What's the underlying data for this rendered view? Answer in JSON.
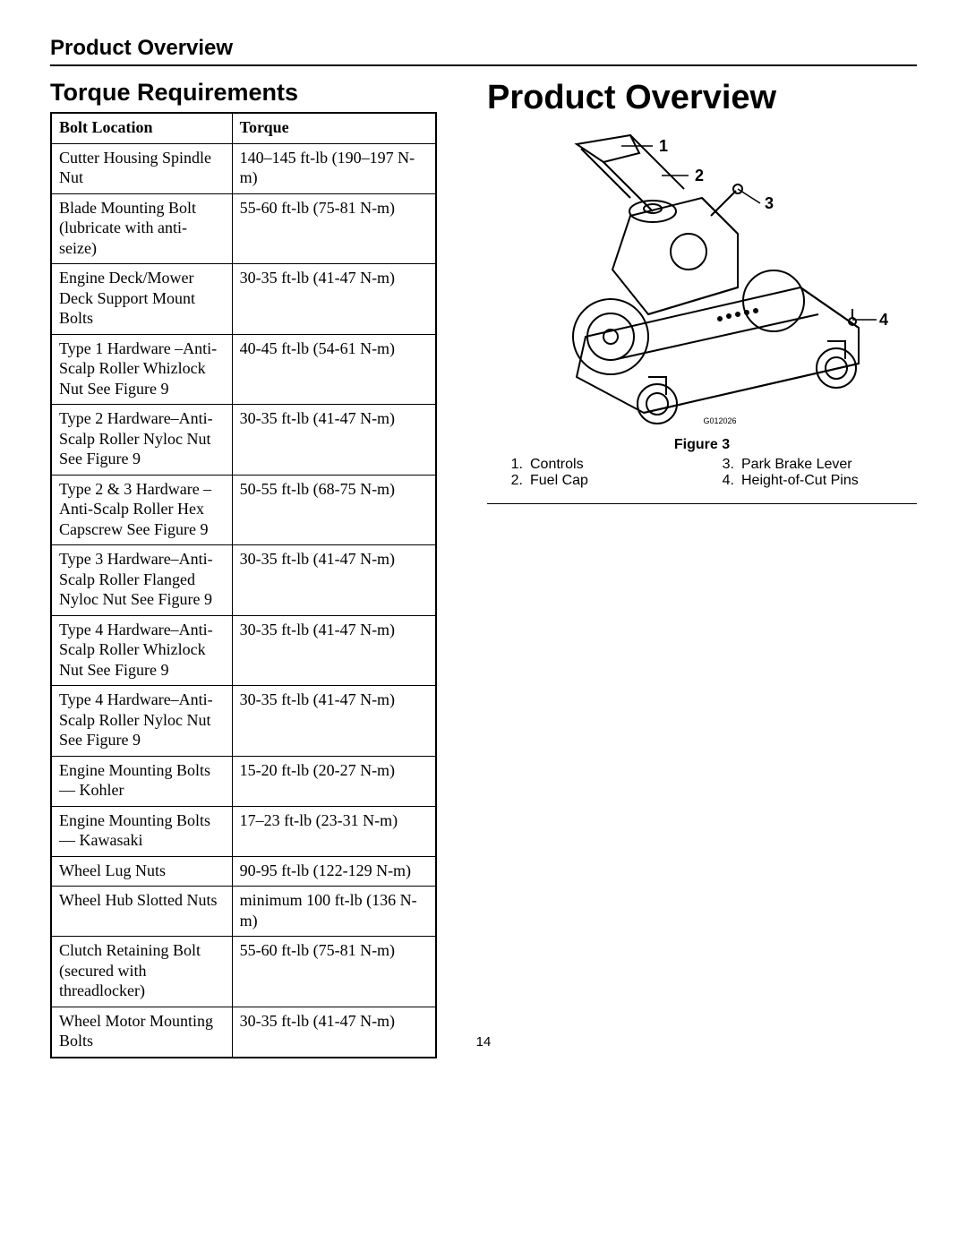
{
  "header": {
    "title": "Product Overview"
  },
  "left": {
    "heading": "Torque Requirements",
    "table": {
      "columns": [
        "Bolt Location",
        "Torque"
      ],
      "rows": [
        [
          "Cutter Housing Spindle Nut",
          "140–145 ft-lb (190–197 N-m)"
        ],
        [
          "Blade Mounting Bolt (lubricate with anti-seize)",
          "55-60 ft-lb (75-81 N-m)"
        ],
        [
          "Engine Deck/Mower Deck Support Mount Bolts",
          "30-35 ft-lb (41-47 N-m)"
        ],
        [
          "Type 1 Hardware –Anti-Scalp Roller Whizlock Nut See Figure 9",
          "40-45 ft-lb (54-61 N-m)"
        ],
        [
          "Type 2 Hardware–Anti-Scalp Roller Nyloc Nut See Figure 9",
          "30-35 ft-lb (41-47 N-m)"
        ],
        [
          "Type 2 & 3 Hardware –Anti-Scalp Roller Hex Capscrew See Figure 9",
          "50-55 ft-lb (68-75 N-m)"
        ],
        [
          "Type 3 Hardware–Anti-Scalp Roller Flanged Nyloc Nut See Figure 9",
          "30-35 ft-lb (41-47 N-m)"
        ],
        [
          "Type 4 Hardware–Anti-Scalp Roller Whizlock Nut See Figure 9",
          "30-35 ft-lb (41-47 N-m)"
        ],
        [
          "Type 4 Hardware–Anti-Scalp Roller Nyloc Nut See Figure 9",
          "30-35 ft-lb (41-47 N-m)"
        ],
        [
          "Engine Mounting Bolts — Kohler",
          "15-20 ft-lb (20-27 N-m)"
        ],
        [
          "Engine Mounting Bolts — Kawasaki",
          "17–23 ft-lb (23-31 N-m)"
        ],
        [
          "Wheel Lug Nuts",
          "90-95 ft-lb (122-129 N-m)"
        ],
        [
          "Wheel Hub Slotted Nuts",
          "minimum 100 ft-lb (136 N-m)"
        ],
        [
          "Clutch Retaining Bolt (secured with threadlocker)",
          "55-60 ft-lb (75-81 N-m)"
        ],
        [
          "Wheel Motor Mounting Bolts",
          "30-35 ft-lb (41-47 N-m)"
        ]
      ]
    }
  },
  "right": {
    "heading": "Product Overview",
    "figure": {
      "caption": "Figure 3",
      "code": "G012026",
      "callouts": [
        "1",
        "2",
        "3",
        "4"
      ],
      "legend": [
        {
          "n": "1.",
          "label": "Controls"
        },
        {
          "n": "2.",
          "label": "Fuel Cap"
        },
        {
          "n": "3.",
          "label": "Park Brake Lever"
        },
        {
          "n": "4.",
          "label": "Height-of-Cut Pins"
        }
      ]
    }
  },
  "pageNumber": "14"
}
